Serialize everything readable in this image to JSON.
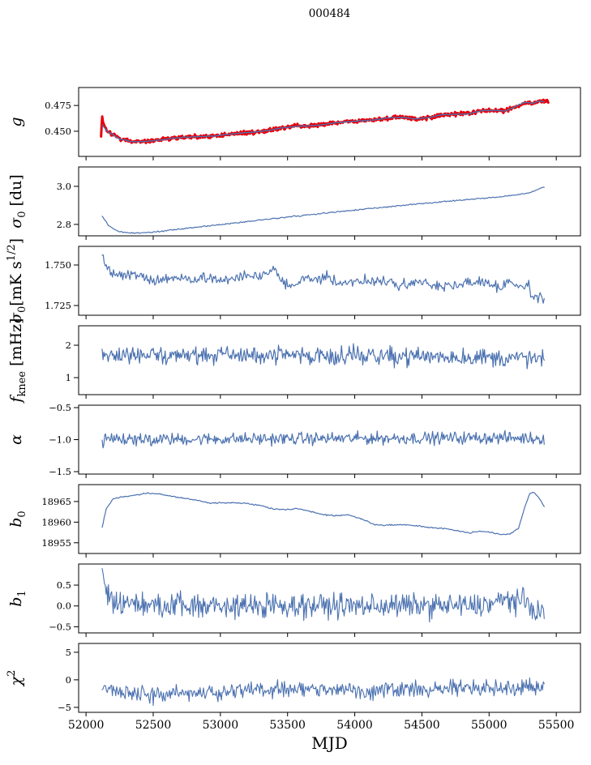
{
  "title": "000484",
  "x_axis": {
    "label": "MJD",
    "lim": [
      51945,
      55680
    ],
    "tick_values": [
      52000,
      52500,
      53000,
      53500,
      54000,
      54500,
      55000,
      55500
    ],
    "tick_labels": [
      "52000",
      "52500",
      "53000",
      "53500",
      "54000",
      "54500",
      "55000",
      "55500"
    ]
  },
  "colors": {
    "line": "#4c72b0",
    "scatter": "#e8000b",
    "axis": "#000000"
  },
  "chart_data": [
    {
      "type": "line",
      "name": "g",
      "ylabel_parts": [
        {
          "text": "g",
          "italic": true
        }
      ],
      "ylim": [
        0.4256,
        0.4924
      ],
      "ytick_values": [
        0.475,
        0.45
      ],
      "ytick_labels": [
        "0.475",
        "0.450"
      ],
      "series": [
        {
          "name": "g-data",
          "color": "#e8000b",
          "width": 3,
          "noise": 0.0011,
          "samples": 750,
          "x": [
            52112,
            52120,
            52128,
            52160,
            52250,
            52350,
            52450,
            52550,
            52650,
            52750,
            52850,
            52950,
            53050,
            53150,
            53250,
            53350,
            53450,
            53550,
            53650,
            53750,
            53850,
            53950,
            54050,
            54150,
            54250,
            54350,
            54450,
            54550,
            54650,
            54750,
            54850,
            54950,
            55050,
            55120,
            55200,
            55270,
            55320,
            55370,
            55440
          ],
          "y": [
            0.4455,
            0.4648,
            0.4565,
            0.45,
            0.4427,
            0.4398,
            0.4401,
            0.4416,
            0.4435,
            0.4443,
            0.4448,
            0.4453,
            0.447,
            0.4483,
            0.4491,
            0.4506,
            0.4531,
            0.4546,
            0.4551,
            0.4561,
            0.4581,
            0.4593,
            0.4601,
            0.4611,
            0.4631,
            0.4636,
            0.462,
            0.4632,
            0.4661,
            0.4664,
            0.4671,
            0.4701,
            0.4701,
            0.4696,
            0.4741,
            0.4781,
            0.477,
            0.4792,
            0.4787
          ]
        },
        {
          "name": "g-fit",
          "color": "#4c72b0",
          "width": 1.4,
          "noise": 0.00025,
          "samples": 400,
          "x": [
            52120,
            52160,
            52250,
            52350,
            52450,
            52550,
            52650,
            52750,
            52850,
            52950,
            53050,
            53150,
            53250,
            53350,
            53450,
            53550,
            53650,
            53750,
            53850,
            53950,
            54050,
            54150,
            54250,
            54350,
            54450,
            54550,
            54650,
            54750,
            54850,
            54950,
            55050,
            55120,
            55200,
            55270,
            55320,
            55370,
            55410
          ],
          "y": [
            0.456,
            0.4498,
            0.4426,
            0.4398,
            0.4401,
            0.4416,
            0.4435,
            0.4443,
            0.4448,
            0.4453,
            0.447,
            0.4483,
            0.4491,
            0.4506,
            0.4531,
            0.4546,
            0.4551,
            0.4561,
            0.4581,
            0.4593,
            0.4601,
            0.4611,
            0.4631,
            0.4636,
            0.462,
            0.4632,
            0.4661,
            0.4664,
            0.4671,
            0.4701,
            0.4701,
            0.4696,
            0.4741,
            0.4781,
            0.477,
            0.4792,
            0.479
          ]
        }
      ]
    },
    {
      "type": "line",
      "name": "sigma0-du",
      "ylabel_parts": [
        {
          "text": "σ",
          "italic": true
        },
        {
          "text": "0",
          "script": "sub"
        },
        {
          "text": " [du]"
        }
      ],
      "ylim": [
        2.74,
        3.102
      ],
      "ytick_values": [
        3.0,
        2.8
      ],
      "ytick_labels": [
        "3.0",
        "2.8"
      ],
      "series": [
        {
          "name": "sigma0-du",
          "color": "#4c72b0",
          "width": 1.2,
          "noise": 0.0018,
          "samples": 420,
          "x": [
            52120,
            52170,
            52230,
            52300,
            52400,
            52500,
            52600,
            52700,
            52800,
            52900,
            53000,
            53100,
            53200,
            53300,
            53400,
            53500,
            53600,
            53700,
            53800,
            53900,
            54000,
            54100,
            54200,
            54300,
            54400,
            54500,
            54600,
            54700,
            54800,
            54900,
            55000,
            55100,
            55200,
            55300,
            55410
          ],
          "y": [
            2.845,
            2.792,
            2.765,
            2.756,
            2.755,
            2.76,
            2.768,
            2.776,
            2.784,
            2.791,
            2.799,
            2.807,
            2.815,
            2.823,
            2.831,
            2.839,
            2.846,
            2.853,
            2.861,
            2.868,
            2.875,
            2.882,
            2.889,
            2.896,
            2.903,
            2.91,
            2.916,
            2.922,
            2.928,
            2.934,
            2.94,
            2.946,
            2.955,
            2.966,
            2.995
          ]
        }
      ]
    },
    {
      "type": "line",
      "name": "sigma0-mK",
      "ylabel_parts": [
        {
          "text": "σ",
          "italic": true
        },
        {
          "text": "0",
          "script": "sub"
        },
        {
          "text": "[mK s"
        },
        {
          "text": "1/2",
          "script": "sup"
        },
        {
          "text": "]"
        }
      ],
      "ylim": [
        1.719,
        1.7615
      ],
      "ytick_values": [
        1.75,
        1.725
      ],
      "ytick_labels": [
        "1.750",
        "1.725"
      ],
      "series": [
        {
          "name": "sigma0-mK",
          "color": "#4c72b0",
          "width": 1.2,
          "noise": 0.0019,
          "samples": 430,
          "x": [
            52120,
            52150,
            52200,
            52300,
            52400,
            52500,
            52600,
            52700,
            52800,
            52900,
            53000,
            53100,
            53200,
            53300,
            53380,
            53420,
            53500,
            53600,
            53700,
            53800,
            53900,
            54000,
            54100,
            54200,
            54300,
            54400,
            54500,
            54600,
            54700,
            54800,
            54900,
            55000,
            55080,
            55150,
            55220,
            55300,
            55350,
            55410
          ],
          "y": [
            1.7565,
            1.749,
            1.744,
            1.7445,
            1.7435,
            1.74,
            1.7415,
            1.742,
            1.7405,
            1.7425,
            1.7405,
            1.742,
            1.7435,
            1.743,
            1.748,
            1.744,
            1.737,
            1.74,
            1.7415,
            1.742,
            1.739,
            1.74,
            1.7405,
            1.7395,
            1.738,
            1.739,
            1.7395,
            1.737,
            1.7365,
            1.739,
            1.7395,
            1.739,
            1.736,
            1.74,
            1.737,
            1.736,
            1.728,
            1.7305
          ]
        }
      ]
    },
    {
      "type": "line",
      "name": "fknee",
      "ylabel_parts": [
        {
          "text": "f",
          "italic": true
        },
        {
          "text": "knee",
          "script": "sub"
        },
        {
          "text": " [mHz]"
        }
      ],
      "ylim": [
        0.475,
        2.6
      ],
      "ytick_values": [
        2,
        1
      ],
      "ytick_labels": [
        "2",
        "1"
      ],
      "series": [
        {
          "name": "fknee",
          "color": "#4c72b0",
          "width": 1.2,
          "noise": 0.165,
          "samples": 520,
          "x": [
            52120,
            52500,
            53000,
            53500,
            54000,
            54500,
            55000,
            55410
          ],
          "y": [
            1.72,
            1.7,
            1.7,
            1.68,
            1.7,
            1.66,
            1.62,
            1.58
          ]
        }
      ]
    },
    {
      "type": "line",
      "name": "alpha",
      "ylabel_parts": [
        {
          "text": "α",
          "italic": true
        }
      ],
      "ylim": [
        -1.538,
        -0.462
      ],
      "ytick_values": [
        -0.5,
        -1.0,
        -1.5
      ],
      "ytick_labels": [
        "−0.5",
        "−1.0",
        "−1.5"
      ],
      "series": [
        {
          "name": "alpha",
          "color": "#4c72b0",
          "width": 1.2,
          "noise": 0.055,
          "samples": 520,
          "x": [
            52120,
            53000,
            54000,
            55000,
            55410
          ],
          "y": [
            -1.0,
            -0.99,
            -0.98,
            -0.97,
            -0.98
          ]
        }
      ]
    },
    {
      "type": "line",
      "name": "b0",
      "ylabel_parts": [
        {
          "text": "b",
          "italic": true
        },
        {
          "text": "0",
          "script": "sub"
        }
      ],
      "ylim": [
        18952.4,
        18969.1
      ],
      "ytick_values": [
        18965,
        18960,
        18955
      ],
      "ytick_labels": [
        "18965",
        "18960",
        "18955"
      ],
      "series": [
        {
          "name": "b0",
          "color": "#4c72b0",
          "width": 1.2,
          "noise": 0.09,
          "samples": 430,
          "x": [
            52120,
            52150,
            52200,
            52270,
            52350,
            52450,
            52550,
            52650,
            52750,
            52850,
            52920,
            53000,
            53100,
            53200,
            53300,
            53400,
            53500,
            53570,
            53650,
            53750,
            53850,
            53950,
            54050,
            54150,
            54250,
            54350,
            54450,
            54550,
            54650,
            54750,
            54850,
            54950,
            55020,
            55100,
            55160,
            55220,
            55260,
            55300,
            55330,
            55370,
            55410
          ],
          "y": [
            18958.8,
            18963.2,
            18965.6,
            18966.2,
            18966.5,
            18967.0,
            18966.8,
            18966.2,
            18965.7,
            18965.2,
            18964.6,
            18964.7,
            18964.7,
            18964.5,
            18964.0,
            18963.2,
            18963.0,
            18963.3,
            18962.8,
            18961.9,
            18961.6,
            18961.8,
            18960.8,
            18959.3,
            18959.3,
            18959.4,
            18959.2,
            18958.7,
            18958.5,
            18958.0,
            18957.4,
            18957.8,
            18957.5,
            18957.0,
            18957.2,
            18958.6,
            18963.0,
            18966.8,
            18967.3,
            18966.0,
            18963.8
          ]
        }
      ]
    },
    {
      "type": "line",
      "name": "b1",
      "ylabel_parts": [
        {
          "text": "b",
          "italic": true
        },
        {
          "text": "1",
          "script": "sub"
        }
      ],
      "ylim": [
        -0.647,
        1.006
      ],
      "ytick_values": [
        0.5,
        0.0,
        -0.5
      ],
      "ytick_labels": [
        "0.5",
        "0.0",
        "−0.5"
      ],
      "series": [
        {
          "name": "b1",
          "color": "#4c72b0",
          "width": 1.1,
          "noise": 0.165,
          "samples": 560,
          "x": [
            52120,
            52140,
            52180,
            52260,
            52400,
            53000,
            53500,
            54000,
            54500,
            54900,
            55050,
            55150,
            55250,
            55320,
            55410
          ],
          "y": [
            0.78,
            0.4,
            0.18,
            0.04,
            0.0,
            0.0,
            0.02,
            0.0,
            0.01,
            0.0,
            0.08,
            0.17,
            0.1,
            -0.05,
            -0.18
          ]
        }
      ]
    },
    {
      "type": "line",
      "name": "chi2",
      "ylabel_parts": [
        {
          "text": "χ",
          "italic": true
        },
        {
          "text": "2",
          "script": "sup"
        }
      ],
      "ylim": [
        -5.9,
        6.6
      ],
      "ytick_values": [
        5,
        0,
        -5
      ],
      "ytick_labels": [
        "5",
        "0",
        "−5"
      ],
      "series": [
        {
          "name": "chi2",
          "color": "#4c72b0",
          "width": 1.1,
          "noise": 0.85,
          "samples": 520,
          "x": [
            52120,
            52200,
            52350,
            52500,
            52700,
            52900,
            53100,
            53400,
            53700,
            54000,
            54300,
            54600,
            54900,
            55100,
            55250,
            55410
          ],
          "y": [
            -1.0,
            -1.9,
            -2.6,
            -2.7,
            -2.3,
            -2.5,
            -1.9,
            -1.7,
            -1.9,
            -1.8,
            -1.9,
            -1.6,
            -1.5,
            -1.4,
            -1.3,
            -1.2
          ]
        }
      ]
    }
  ]
}
